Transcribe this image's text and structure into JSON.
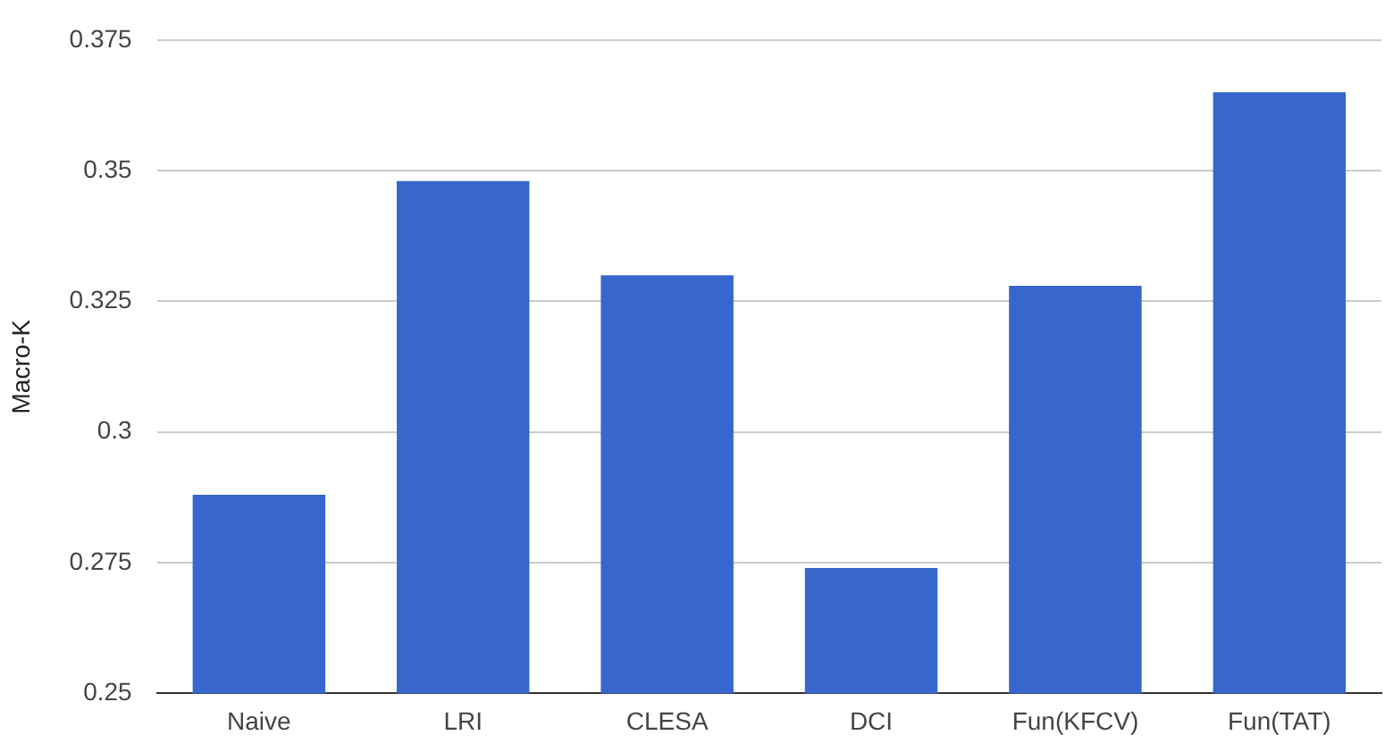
{
  "chart_data": {
    "type": "bar",
    "ylabel": "Macro-K",
    "categories": [
      "Naive",
      "LRI",
      "CLESA",
      "DCI",
      "Fun(KFCV)",
      "Fun(TAT)"
    ],
    "values": [
      0.288,
      0.348,
      0.33,
      0.274,
      0.328,
      0.365
    ],
    "color": "#3766cc",
    "ylim": [
      0.25,
      0.375
    ],
    "yticks": [
      0.25,
      0.275,
      0.3,
      0.325,
      0.35,
      0.375
    ],
    "grid": "y",
    "legend": false
  }
}
